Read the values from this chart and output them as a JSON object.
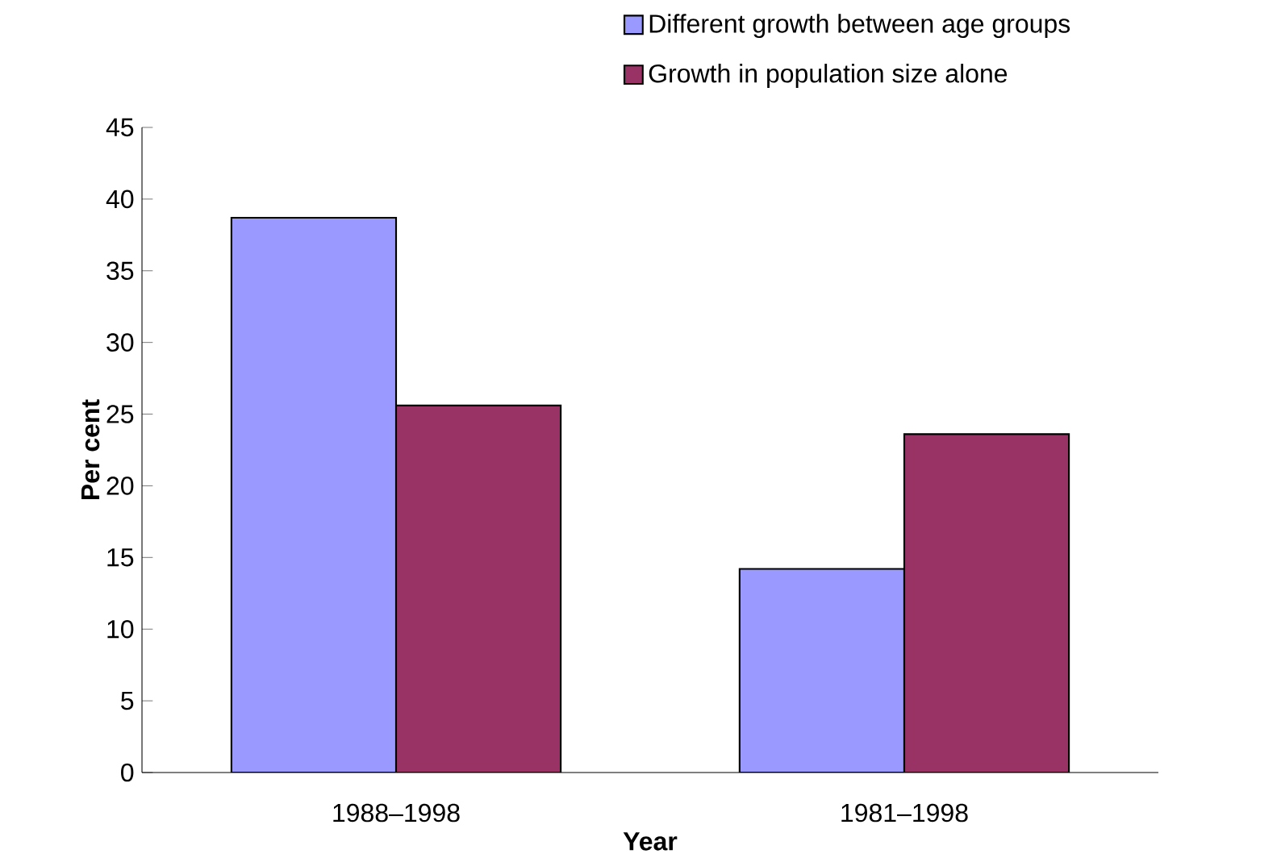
{
  "chart_data": {
    "type": "bar",
    "xlabel": "Year",
    "ylabel": "Per cent",
    "categories": [
      "1988–1998",
      "1981–1998"
    ],
    "series": [
      {
        "name": "Different growth between age groups",
        "color": "#9999ff",
        "values": [
          38.7,
          14.2
        ]
      },
      {
        "name": "Growth in population size alone",
        "color": "#993366",
        "values": [
          25.6,
          23.6
        ]
      }
    ],
    "ylim": [
      0,
      45
    ],
    "yticks": [
      0,
      5,
      10,
      15,
      20,
      25,
      30,
      35,
      40,
      45
    ],
    "grid": false,
    "legend": "top right"
  }
}
